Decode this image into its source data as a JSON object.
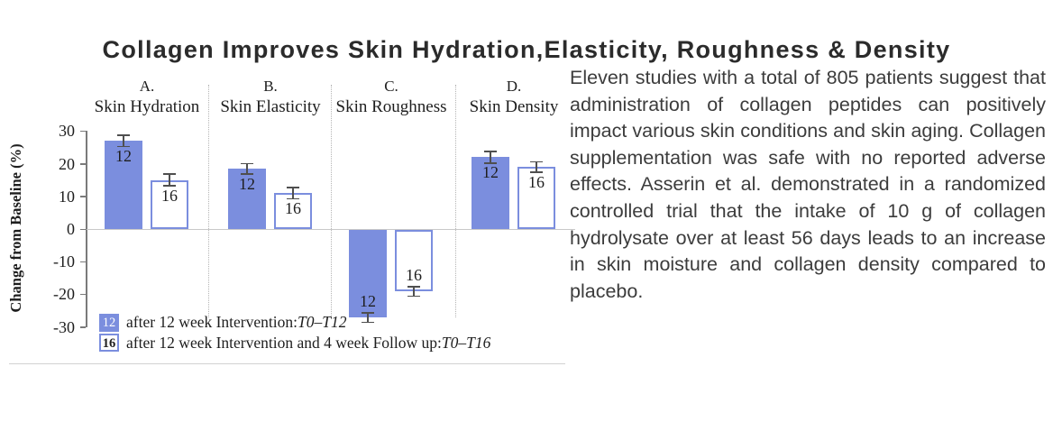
{
  "page": {
    "background": "#ffffff"
  },
  "title": "Collagen Improves Skin Hydration,Elasticity, Roughness & Density",
  "description": "Eleven studies with a total of 805 patients suggest that administration of collagen peptides can positively impact various skin conditions and skin aging. Collagen supplementation was safe with no reported adverse effects. Asserin et al. demonstrated in a randomized controlled trial that the intake of 10 g of collagen hydrolysate over at least 56 days leads to an increase in skin moisture and collagen density compared to placebo.",
  "colors": {
    "bar_fill": "#7b8ede",
    "bar_outline": "#7b8ede",
    "error_bar": "#4f4f4f",
    "axis": "#7a7a7a",
    "zero_line": "#c9c9c9",
    "separator": "#b5b5b5",
    "figure_border": "#d2d2d2",
    "title_text": "#2b2b2b",
    "body_text": "#3c3c3c",
    "chart_text": "#1e1e1e",
    "legend_key_filled_text": "#ffffff"
  },
  "chart_data": {
    "type": "bar",
    "title": "",
    "xlabel": "",
    "ylabel": "Change from Baseline (%)",
    "ylim": [
      -30,
      30
    ],
    "yticks": [
      30,
      20,
      10,
      0,
      -10,
      -20,
      -30
    ],
    "grid": false,
    "legend_position": "bottom-left",
    "panels": [
      {
        "letter": "A.",
        "name": "Skin Hydration",
        "bars": [
          {
            "series": "12",
            "value": 27,
            "error": 2.0,
            "style": "filled"
          },
          {
            "series": "16",
            "value": 15,
            "error": 2.0,
            "style": "outlined"
          }
        ]
      },
      {
        "letter": "B.",
        "name": "Skin Elasticity",
        "bars": [
          {
            "series": "12",
            "value": 18.5,
            "error": 1.8,
            "style": "filled"
          },
          {
            "series": "16",
            "value": 11,
            "error": 1.9,
            "style": "outlined"
          }
        ]
      },
      {
        "letter": "C.",
        "name": "Skin Roughness",
        "bars": [
          {
            "series": "12",
            "value": -27,
            "error": 1.7,
            "style": "filled"
          },
          {
            "series": "16",
            "value": -19,
            "error": 1.7,
            "style": "outlined"
          }
        ]
      },
      {
        "letter": "D.",
        "name": "Skin Density",
        "bars": [
          {
            "series": "12",
            "value": 22,
            "error": 2.0,
            "style": "filled"
          },
          {
            "series": "16",
            "value": 19,
            "error": 1.8,
            "style": "outlined"
          }
        ]
      }
    ],
    "legend": [
      {
        "key": "12",
        "style": "filled",
        "text": "after 12 week Intervention: ",
        "period": "T0–T12"
      },
      {
        "key": "16",
        "style": "outlined",
        "text": "after 12 week Intervention and 4 week Follow up: ",
        "period": "T0–T16"
      }
    ]
  }
}
